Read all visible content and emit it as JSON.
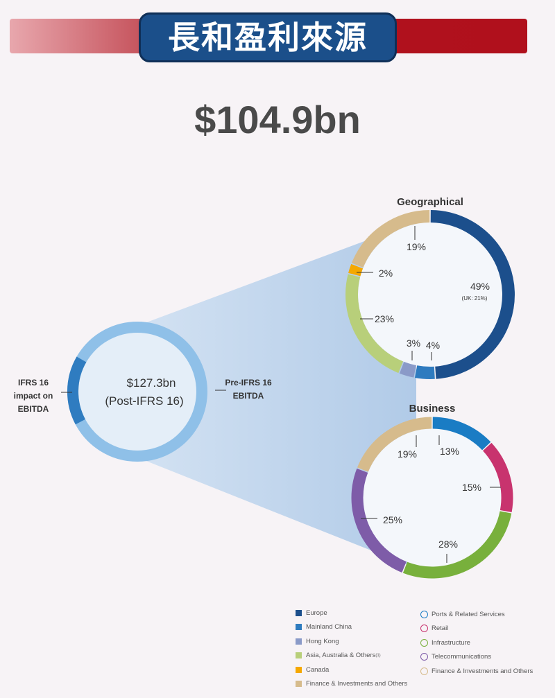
{
  "header": {
    "title": "長和盈利來源"
  },
  "total": "$104.9bn",
  "center_donut": {
    "value": "$127.3bn",
    "subtitle": "(Post-IFRS 16)",
    "left_label": [
      "IFRS 16",
      "impact on",
      "EBITDA"
    ],
    "right_label": [
      "Pre-IFRS 16",
      "EBITDA"
    ],
    "colors": {
      "pre": "#8fc0e8",
      "impact": "#2f7cc0"
    }
  },
  "chart_data": [
    {
      "type": "pie",
      "title": "Geographical",
      "unit": "%",
      "categories": [
        "Europe",
        "Mainland China",
        "Hong Kong",
        "Asia, Australia & Others",
        "Canada",
        "Finance & Investments and Others"
      ],
      "values": [
        49,
        4,
        3,
        23,
        2,
        19
      ],
      "labels": [
        "49%",
        "4%",
        "3%",
        "23%",
        "2%",
        "19%"
      ],
      "annotation": "(UK: 21%)",
      "colors": [
        "#1c4f8c",
        "#2e7bbf",
        "#8a9ac8",
        "#b8cf7a",
        "#f5a800",
        "#d6bb8c"
      ]
    },
    {
      "type": "pie",
      "title": "Business",
      "unit": "%",
      "categories": [
        "Ports & Related Services",
        "Retail",
        "Infrastructure",
        "Telecommunications",
        "Finance & Investments and Others"
      ],
      "values": [
        13,
        15,
        28,
        25,
        19
      ],
      "labels": [
        "13%",
        "15%",
        "28%",
        "25%",
        "19%"
      ],
      "colors": [
        "#1a7cc4",
        "#c8336e",
        "#78b03c",
        "#7e5ca8",
        "#d6bb8c"
      ]
    }
  ],
  "legend_geo": [
    "Europe",
    "Mainland China",
    "Hong Kong",
    "Asia, Australia & Others",
    "Canada",
    "Finance & Investments and Others"
  ],
  "legend_geo_footnote": "(1)",
  "legend_business": [
    "Ports & Related Services",
    "Retail",
    "Infrastructure",
    "Telecommunications",
    "Finance & Investments and Others"
  ]
}
